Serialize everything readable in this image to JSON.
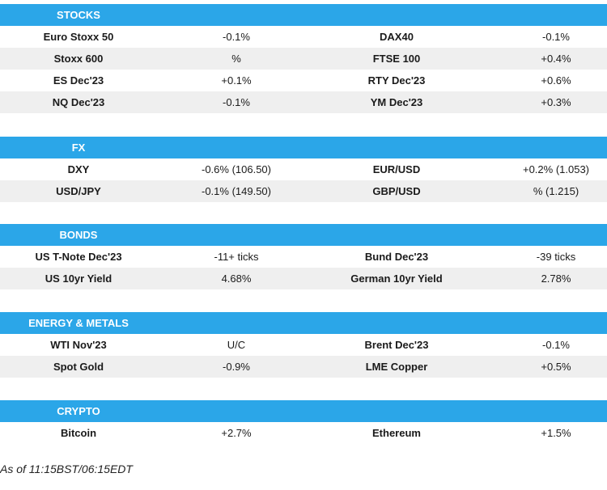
{
  "sections": [
    {
      "title": "STOCKS",
      "rows": [
        [
          "Euro Stoxx 50",
          "-0.1%",
          "DAX40",
          "-0.1%"
        ],
        [
          "Stoxx 600",
          "%",
          "FTSE 100",
          "+0.4%"
        ],
        [
          "ES Dec'23",
          "+0.1%",
          "RTY Dec'23",
          "+0.6%"
        ],
        [
          "NQ Dec'23",
          "-0.1%",
          "YM Dec'23",
          "+0.3%"
        ]
      ]
    },
    {
      "title": "FX",
      "rows": [
        [
          "DXY",
          "-0.6% (106.50)",
          "EUR/USD",
          "+0.2% (1.053)"
        ],
        [
          "USD/JPY",
          "-0.1% (149.50)",
          "GBP/USD",
          "% (1.215)"
        ]
      ]
    },
    {
      "title": "BONDS",
      "rows": [
        [
          "US T-Note Dec'23",
          "-11+ ticks",
          "Bund Dec'23",
          "-39 ticks"
        ],
        [
          "US 10yr Yield",
          "4.68%",
          "German 10yr Yield",
          "2.78%"
        ]
      ]
    },
    {
      "title": "ENERGY & METALS",
      "rows": [
        [
          "WTI Nov'23",
          "U/C",
          "Brent Dec'23",
          "-0.1%"
        ],
        [
          "Spot Gold",
          "-0.9%",
          "LME Copper",
          "+0.5%"
        ]
      ]
    },
    {
      "title": "CRYPTO",
      "rows": [
        [
          "Bitcoin",
          "+2.7%",
          "Ethereum",
          "+1.5%"
        ]
      ]
    }
  ],
  "footer": "As of 11:15BST/06:15EDT",
  "colors": {
    "header_bg": "#2ba6e8",
    "row_alt_bg": "#efefef"
  }
}
